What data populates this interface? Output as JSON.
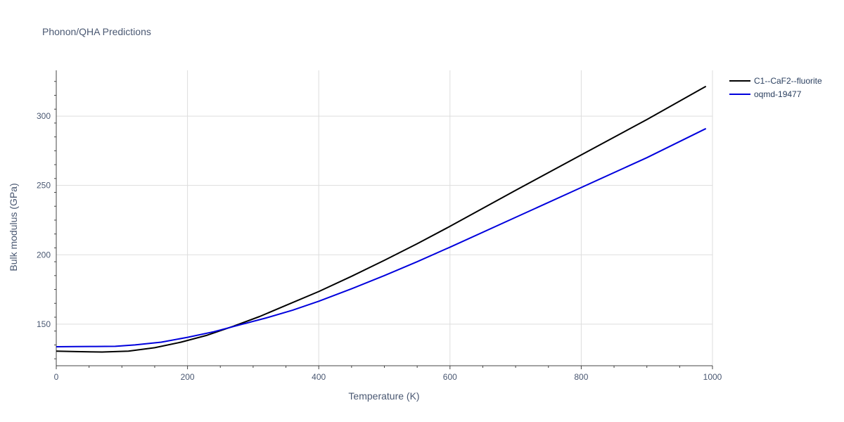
{
  "chart_data": {
    "type": "line",
    "title": "Phonon/QHA Predictions",
    "xlabel": "Temperature (K)",
    "ylabel": "Bulk modulus (GPa)",
    "xlim": [
      0,
      1000
    ],
    "ylim": [
      120,
      333
    ],
    "x_ticks": [
      0,
      200,
      400,
      600,
      800,
      1000
    ],
    "y_ticks": [
      150,
      200,
      250,
      300
    ],
    "grid": true,
    "legend_position": "top-right",
    "series": [
      {
        "name": "C1--CaF2--fluorite",
        "color": "#000000",
        "x": [
          0,
          30,
          70,
          110,
          150,
          190,
          230,
          270,
          310,
          350,
          400,
          450,
          500,
          550,
          600,
          700,
          800,
          900,
          990
        ],
        "y": [
          130.5,
          130.2,
          129.9,
          130.5,
          133.0,
          137.0,
          142.0,
          148.5,
          155.5,
          163.5,
          173.5,
          184.5,
          196.0,
          208.0,
          220.5,
          246.5,
          272.0,
          297.5,
          321.5
        ]
      },
      {
        "name": "oqmd-19477",
        "color": "#0000dd",
        "x": [
          0,
          30,
          60,
          90,
          120,
          160,
          200,
          240,
          280,
          320,
          360,
          400,
          450,
          500,
          550,
          600,
          700,
          800,
          900,
          990
        ],
        "y": [
          133.7,
          133.8,
          133.9,
          134.0,
          135.0,
          137.0,
          140.5,
          144.5,
          149.5,
          154.5,
          160.0,
          166.5,
          175.5,
          185.0,
          195.0,
          205.5,
          227.0,
          248.5,
          270.0,
          291.0
        ]
      }
    ]
  }
}
